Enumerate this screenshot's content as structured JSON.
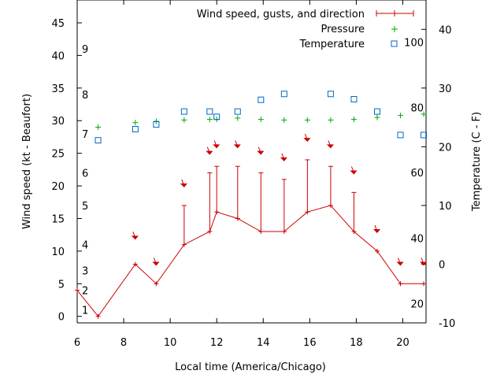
{
  "chart_data": {
    "type": "line",
    "xlabel": "Local time (America/Chicago)",
    "ylabel_left": "Wind speed (kt - Beaufort)",
    "ylabel_right": "Temperature (C - F)",
    "xlim": [
      6,
      21
    ],
    "ylim_left": [
      -1,
      48.5
    ],
    "ylim_right": [
      -10,
      45
    ],
    "x_ticks": [
      6,
      8,
      10,
      12,
      14,
      16,
      18,
      20
    ],
    "y_left_ticks": [
      0,
      5,
      10,
      15,
      20,
      25,
      30,
      35,
      40,
      45
    ],
    "y_right_ticks": [
      -10,
      0,
      10,
      20,
      30,
      40
    ],
    "beaufort_ticks": [
      {
        "label": "1",
        "at_kt": 1
      },
      {
        "label": "2",
        "at_kt": 4
      },
      {
        "label": "3",
        "at_kt": 7
      },
      {
        "label": "4",
        "at_kt": 11
      },
      {
        "label": "5",
        "at_kt": 17
      },
      {
        "label": "6",
        "at_kt": 22
      },
      {
        "label": "7",
        "at_kt": 28
      },
      {
        "label": "8",
        "at_kt": 34
      },
      {
        "label": "9",
        "at_kt": 41
      }
    ],
    "fahrenheit_ticks": [
      {
        "label": "20",
        "at_c": -6.7
      },
      {
        "label": "40",
        "at_c": 4.4
      },
      {
        "label": "60",
        "at_c": 15.6
      },
      {
        "label": "80",
        "at_c": 26.7
      },
      {
        "label": "100",
        "at_c": 37.8
      }
    ],
    "legend_position": "top-right",
    "series": [
      {
        "name": "Wind speed, gusts, and direction",
        "color": "#cc0000",
        "x": [
          6.0,
          6.9,
          8.5,
          9.4,
          10.6,
          11.7,
          12.0,
          12.9,
          13.9,
          14.9,
          15.9,
          16.9,
          17.9,
          18.9,
          19.9,
          20.9
        ],
        "speed": [
          4,
          0,
          8,
          5,
          11,
          13,
          16,
          15,
          13,
          13,
          16,
          17,
          13,
          10,
          5,
          5
        ],
        "gust": [
          null,
          null,
          null,
          null,
          17,
          22,
          23,
          23,
          22,
          21,
          24,
          23,
          19,
          null,
          null,
          null
        ]
      },
      {
        "name": "Pressure",
        "color": "#00aa00",
        "x": [
          6.9,
          8.5,
          9.4,
          10.6,
          11.7,
          12.0,
          12.9,
          13.9,
          14.9,
          15.9,
          16.9,
          17.9,
          18.9,
          19.9,
          20.9
        ],
        "y": [
          29.0,
          29.7,
          29.9,
          30.1,
          30.2,
          30.2,
          30.4,
          30.2,
          30.1,
          30.1,
          30.1,
          30.2,
          30.5,
          30.8,
          31.0
        ]
      },
      {
        "name": "Temperature",
        "color": "#0066cc",
        "x": [
          6.9,
          8.5,
          9.4,
          10.6,
          11.7,
          12.0,
          12.9,
          13.9,
          14.9,
          15.9,
          16.9,
          17.9,
          18.9,
          19.9,
          20.9
        ],
        "y": [
          21.1,
          23.0,
          23.8,
          26.0,
          26.0,
          25.1,
          26.0,
          28.0,
          29.0,
          null,
          29.0,
          28.1,
          26.0,
          22.0,
          22.0
        ]
      }
    ],
    "direction_arrows": [
      {
        "x": 8.5,
        "y_kt": 12.0
      },
      {
        "x": 9.4,
        "y_kt": 8.0
      },
      {
        "x": 10.6,
        "y_kt": 20.0
      },
      {
        "x": 11.7,
        "y_kt": 25.0
      },
      {
        "x": 12.0,
        "y_kt": 26.0
      },
      {
        "x": 12.9,
        "y_kt": 26.0
      },
      {
        "x": 13.9,
        "y_kt": 25.0
      },
      {
        "x": 14.9,
        "y_kt": 24.0
      },
      {
        "x": 15.9,
        "y_kt": 27.0
      },
      {
        "x": 16.9,
        "y_kt": 26.0
      },
      {
        "x": 17.9,
        "y_kt": 22.0
      },
      {
        "x": 18.9,
        "y_kt": 13.0
      },
      {
        "x": 19.9,
        "y_kt": 8.0
      },
      {
        "x": 20.9,
        "y_kt": 8.0
      }
    ]
  }
}
